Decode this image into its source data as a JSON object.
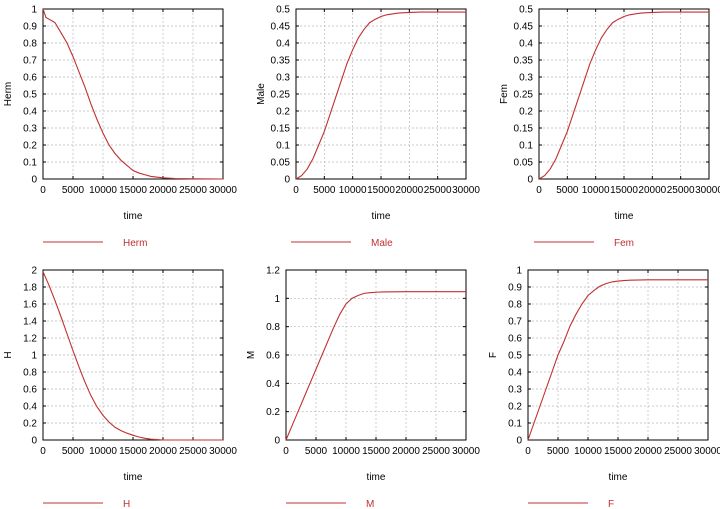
{
  "chart_data": [
    {
      "type": "line",
      "xlabel": "time",
      "ylabel": "Herm",
      "xlim": [
        0,
        30000
      ],
      "ylim": [
        0,
        1
      ],
      "xticks": [
        0,
        5000,
        10000,
        15000,
        20000,
        25000,
        30000
      ],
      "yticks": [
        0,
        0.1,
        0.2,
        0.3,
        0.4,
        0.5,
        0.6,
        0.7,
        0.8,
        0.9,
        1
      ],
      "grid": true,
      "legend_position": "bottom",
      "series": [
        {
          "name": "Herm",
          "color": "#c03030",
          "x": [
            0,
            500,
            1000,
            1500,
            2000,
            2500,
            3000,
            4000,
            5000,
            6000,
            7000,
            8000,
            9000,
            10000,
            11000,
            12000,
            13000,
            14000,
            15000,
            16000,
            17000,
            18000,
            20000,
            22000,
            25000,
            30000
          ],
          "y": [
            1.0,
            0.95,
            0.94,
            0.93,
            0.92,
            0.89,
            0.86,
            0.8,
            0.72,
            0.63,
            0.54,
            0.44,
            0.35,
            0.27,
            0.2,
            0.15,
            0.11,
            0.08,
            0.05,
            0.035,
            0.025,
            0.015,
            0.007,
            0.003,
            0.001,
            0.0
          ]
        }
      ]
    },
    {
      "type": "line",
      "xlabel": "time",
      "ylabel": "Male",
      "xlim": [
        0,
        30000
      ],
      "ylim": [
        0,
        0.5
      ],
      "xticks": [
        0,
        5000,
        10000,
        15000,
        20000,
        25000,
        30000
      ],
      "yticks": [
        0,
        0.05,
        0.1,
        0.15,
        0.2,
        0.25,
        0.3,
        0.35,
        0.4,
        0.45,
        0.5
      ],
      "grid": true,
      "legend_position": "bottom",
      "series": [
        {
          "name": "Male",
          "color": "#c03030",
          "x": [
            0,
            1000,
            2000,
            3000,
            4000,
            5000,
            6000,
            7000,
            8000,
            9000,
            10000,
            11000,
            12000,
            13000,
            14000,
            15000,
            16000,
            18000,
            20000,
            22000,
            25000,
            30000
          ],
          "y": [
            0.0,
            0.01,
            0.03,
            0.06,
            0.1,
            0.14,
            0.19,
            0.24,
            0.29,
            0.34,
            0.38,
            0.415,
            0.44,
            0.46,
            0.47,
            0.478,
            0.483,
            0.488,
            0.49,
            0.491,
            0.491,
            0.491
          ]
        }
      ]
    },
    {
      "type": "line",
      "xlabel": "time",
      "ylabel": "Fem",
      "xlim": [
        0,
        30000
      ],
      "ylim": [
        0,
        0.5
      ],
      "xticks": [
        0,
        5000,
        10000,
        15000,
        20000,
        25000,
        30000
      ],
      "yticks": [
        0,
        0.05,
        0.1,
        0.15,
        0.2,
        0.25,
        0.3,
        0.35,
        0.4,
        0.45,
        0.5
      ],
      "grid": true,
      "legend_position": "bottom",
      "series": [
        {
          "name": "Fem",
          "color": "#c03030",
          "x": [
            0,
            1000,
            2000,
            3000,
            4000,
            5000,
            6000,
            7000,
            8000,
            9000,
            10000,
            11000,
            12000,
            13000,
            14000,
            15000,
            16000,
            18000,
            20000,
            22000,
            25000,
            30000
          ],
          "y": [
            0.0,
            0.01,
            0.03,
            0.06,
            0.1,
            0.14,
            0.19,
            0.24,
            0.29,
            0.34,
            0.38,
            0.415,
            0.44,
            0.46,
            0.47,
            0.478,
            0.483,
            0.488,
            0.49,
            0.491,
            0.491,
            0.491
          ]
        }
      ]
    },
    {
      "type": "line",
      "xlabel": "time",
      "ylabel": "H",
      "xlim": [
        0,
        30000
      ],
      "ylim": [
        0,
        2
      ],
      "xticks": [
        0,
        5000,
        10000,
        15000,
        20000,
        25000,
        30000
      ],
      "yticks": [
        0,
        0.2,
        0.4,
        0.6,
        0.8,
        1,
        1.2,
        1.4,
        1.6,
        1.8,
        2
      ],
      "grid": true,
      "legend_position": "bottom",
      "series": [
        {
          "name": "H",
          "color": "#c03030",
          "x": [
            0,
            1000,
            2000,
            3000,
            4000,
            5000,
            6000,
            7000,
            8000,
            9000,
            10000,
            11000,
            12000,
            13000,
            14000,
            15000,
            16000,
            17000,
            18000,
            19000,
            20000,
            25000,
            30000
          ],
          "y": [
            1.98,
            1.82,
            1.64,
            1.45,
            1.25,
            1.05,
            0.86,
            0.68,
            0.52,
            0.39,
            0.29,
            0.21,
            0.15,
            0.11,
            0.08,
            0.055,
            0.035,
            0.02,
            0.01,
            0.005,
            0.0,
            0.0,
            0.0
          ]
        }
      ]
    },
    {
      "type": "line",
      "xlabel": "time",
      "ylabel": "M",
      "xlim": [
        0,
        30000
      ],
      "ylim": [
        0,
        1.2
      ],
      "xticks": [
        0,
        5000,
        10000,
        15000,
        20000,
        25000,
        30000
      ],
      "yticks": [
        0,
        0.2,
        0.4,
        0.6,
        0.8,
        1,
        1.2
      ],
      "grid": true,
      "legend_position": "bottom",
      "series": [
        {
          "name": "M",
          "color": "#c03030",
          "x": [
            0,
            1000,
            2000,
            3000,
            4000,
            5000,
            6000,
            7000,
            8000,
            9000,
            10000,
            11000,
            12000,
            13000,
            14000,
            15000,
            16000,
            18000,
            20000,
            25000,
            30000
          ],
          "y": [
            0.0,
            0.1,
            0.2,
            0.3,
            0.4,
            0.5,
            0.6,
            0.7,
            0.8,
            0.89,
            0.96,
            1.0,
            1.02,
            1.035,
            1.04,
            1.043,
            1.045,
            1.046,
            1.047,
            1.047,
            1.047
          ]
        }
      ]
    },
    {
      "type": "line",
      "xlabel": "time",
      "ylabel": "F",
      "xlim": [
        0,
        30000
      ],
      "ylim": [
        0,
        1
      ],
      "xticks": [
        0,
        5000,
        10000,
        15000,
        20000,
        25000,
        30000
      ],
      "yticks": [
        0,
        0.1,
        0.2,
        0.3,
        0.4,
        0.5,
        0.6,
        0.7,
        0.8,
        0.9,
        1
      ],
      "grid": true,
      "legend_position": "bottom",
      "series": [
        {
          "name": "F",
          "color": "#c03030",
          "x": [
            0,
            1000,
            2000,
            3000,
            4000,
            5000,
            6000,
            7000,
            8000,
            9000,
            10000,
            11000,
            12000,
            13000,
            14000,
            15000,
            16000,
            17000,
            18000,
            20000,
            25000,
            30000
          ],
          "y": [
            0.0,
            0.1,
            0.2,
            0.3,
            0.4,
            0.5,
            0.58,
            0.67,
            0.74,
            0.8,
            0.85,
            0.88,
            0.905,
            0.92,
            0.93,
            0.935,
            0.938,
            0.94,
            0.941,
            0.942,
            0.942,
            0.942
          ]
        }
      ]
    }
  ]
}
